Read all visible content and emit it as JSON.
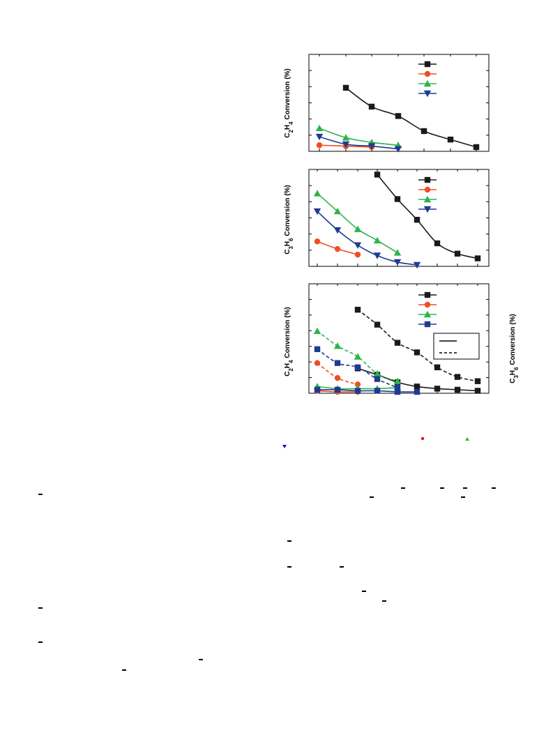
{
  "panels": {
    "a": {
      "ylabel_main": "C",
      "ylabel_sub1": "2",
      "ylabel_mid": "H",
      "ylabel_sub2": "4",
      "ylabel_tail": " Conversion (%)"
    },
    "b": {
      "ylabel_main": "C",
      "ylabel_sub1": "3",
      "ylabel_mid": "H",
      "ylabel_sub2": "6",
      "ylabel_tail": " Conversion (%)"
    },
    "c": {
      "ylabel_main": "C",
      "ylabel_sub1": "2",
      "ylabel_mid": "H",
      "ylabel_sub2": "4",
      "ylabel_tail": " Conversion (%)",
      "right_ylabel_main": "C",
      "right_ylabel_sub1": "3",
      "right_ylabel_mid": "H",
      "right_ylabel_sub2": "6",
      "right_ylabel_tail": " Conversion (%)"
    }
  },
  "colors": {
    "black": "#1a1a1a",
    "red": "#f04e23",
    "green": "#2db34a",
    "blue": "#1f3a93",
    "pure_red": "#e0101e",
    "pure_green": "#22c02a",
    "pure_blue": "#1010c0"
  },
  "chart_data": [
    {
      "type": "line",
      "panel": "a",
      "xlim": [
        0,
        9
      ],
      "ylim": [
        0,
        100
      ],
      "series": [
        {
          "color": "black",
          "marker": "square",
          "x": [
            1,
            2,
            3,
            4,
            5,
            6
          ],
          "y": [
            66,
            46,
            36,
            20,
            11,
            3
          ]
        },
        {
          "color": "red",
          "marker": "circle",
          "x": [
            0,
            1,
            2
          ],
          "y": [
            5,
            4,
            3
          ]
        },
        {
          "color": "green",
          "marker": "triangle-up",
          "x": [
            0,
            1,
            2,
            3
          ],
          "y": [
            23,
            13,
            8,
            5
          ]
        },
        {
          "color": "blue",
          "marker": "triangle-down",
          "x": [
            0,
            1,
            2,
            3
          ],
          "y": [
            14,
            6,
            4,
            1
          ]
        }
      ]
    },
    {
      "type": "line",
      "panel": "b",
      "xlim": [
        0,
        9
      ],
      "ylim": [
        0,
        100
      ],
      "series": [
        {
          "color": "black",
          "marker": "square",
          "x": [
            3,
            4,
            5,
            6,
            7,
            8
          ],
          "y": [
            96,
            70,
            48,
            23,
            12,
            7
          ]
        },
        {
          "color": "red",
          "marker": "circle",
          "x": [
            0,
            1,
            2
          ],
          "y": [
            25,
            17,
            11
          ]
        },
        {
          "color": "green",
          "marker": "triangle-up",
          "x": [
            0,
            1,
            2,
            3,
            4
          ],
          "y": [
            76,
            57,
            38,
            26,
            13
          ]
        },
        {
          "color": "blue",
          "marker": "triangle-down",
          "x": [
            0,
            1,
            2,
            3,
            4,
            5
          ],
          "y": [
            57,
            37,
            21,
            10,
            3,
            0
          ]
        }
      ]
    },
    {
      "type": "line",
      "panel": "c",
      "xlim": [
        0,
        9
      ],
      "ylim": [
        0,
        100
      ],
      "series": [
        {
          "color": "black",
          "marker": "square",
          "style": "dashed",
          "x": [
            2,
            3,
            4,
            5,
            6,
            7,
            8
          ],
          "y": [
            77,
            63,
            46,
            37,
            23,
            14,
            10
          ]
        },
        {
          "color": "black",
          "marker": "square",
          "style": "solid",
          "x": [
            2,
            3,
            4,
            5,
            6,
            7,
            8
          ],
          "y": [
            22,
            16,
            9,
            5,
            3,
            2,
            1
          ]
        },
        {
          "color": "red",
          "marker": "circle",
          "style": "dashed",
          "x": [
            0,
            1,
            2
          ],
          "y": [
            27,
            13,
            7
          ]
        },
        {
          "color": "red",
          "marker": "circle",
          "style": "solid",
          "x": [
            0,
            1,
            2
          ],
          "y": [
            1,
            0,
            0
          ]
        },
        {
          "color": "green",
          "marker": "triangle-up",
          "style": "dashed",
          "x": [
            0,
            1,
            2,
            3,
            4
          ],
          "y": [
            57,
            43,
            33,
            17,
            10
          ]
        },
        {
          "color": "green",
          "marker": "triangle-up",
          "style": "solid",
          "x": [
            0,
            1,
            2,
            3,
            4
          ],
          "y": [
            5,
            3,
            3,
            3,
            4
          ]
        },
        {
          "color": "blue",
          "marker": "square",
          "style": "dashed",
          "x": [
            0,
            1,
            2,
            3,
            4
          ],
          "y": [
            40,
            27,
            23,
            12,
            4
          ]
        },
        {
          "color": "blue",
          "marker": "square",
          "style": "solid",
          "x": [
            0,
            1,
            2,
            3,
            4,
            5
          ],
          "y": [
            2,
            2,
            1,
            1,
            0,
            0
          ]
        }
      ]
    }
  ]
}
